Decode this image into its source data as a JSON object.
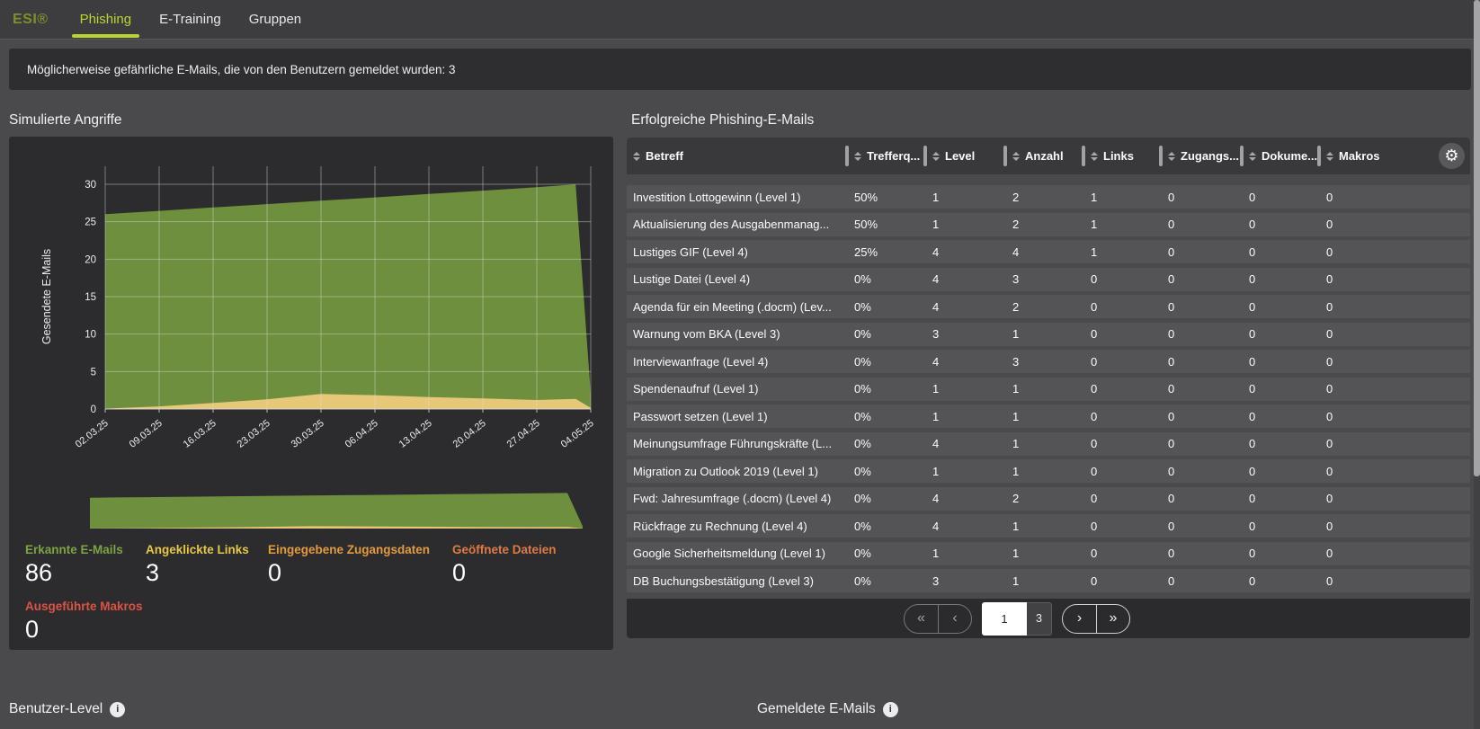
{
  "theme": {
    "accent": "#bdd233",
    "logo_color": "#7f8e2e",
    "panel_bg": "#2c2c2e",
    "row_bg": "#545456"
  },
  "nav": {
    "logo": "ESI®",
    "tabs": [
      {
        "label": "Phishing",
        "active": true
      },
      {
        "label": "E-Training",
        "active": false
      },
      {
        "label": "Gruppen",
        "active": false
      }
    ]
  },
  "notification": {
    "text": "Möglicherweise gefährliche E-Mails, die von den Benutzern gemeldet wurden: 3"
  },
  "simulated_attacks": {
    "title": "Simulierte Angriffe",
    "stats": [
      {
        "label": "Erkannte E-Mails",
        "value": "86",
        "color": "#7ca344"
      },
      {
        "label": "Angeklickte Links",
        "value": "3",
        "color": "#e5c93f"
      },
      {
        "label": "Eingegebene Zugangsdaten",
        "value": "0",
        "color": "#e59b3a"
      },
      {
        "label": "Geöffnete Dateien",
        "value": "0",
        "color": "#df7b42"
      },
      {
        "label": "Ausgeführte Makros",
        "value": "0",
        "color": "#dd5246"
      }
    ]
  },
  "chart_data": {
    "type": "area",
    "title": "Simulierte Angriffe",
    "xlabel": "",
    "ylabel": "Gesendete E-Mails",
    "x_tick_labels": [
      "02.03.25",
      "09.03.25",
      "16.03.25",
      "23.03.25",
      "30.03.25",
      "06.04.25",
      "13.04.25",
      "20.04.25",
      "27.04.25",
      "04.05.25"
    ],
    "yticks": [
      0,
      5,
      10,
      15,
      20,
      25,
      30
    ],
    "ylim": [
      0,
      32.5
    ],
    "grid": true,
    "legend_position": "none",
    "has_brush_overview": true,
    "series": [
      {
        "name": "Gesendete E-Mails",
        "color": "#6e8f3d",
        "points": [
          [
            0,
            26
          ],
          [
            1,
            26.45
          ],
          [
            2,
            26.9
          ],
          [
            3,
            27.35
          ],
          [
            4,
            27.8
          ],
          [
            5,
            28.25
          ],
          [
            6,
            28.7
          ],
          [
            7,
            29.15
          ],
          [
            8,
            29.6
          ],
          [
            8.72,
            30
          ],
          [
            9,
            2
          ]
        ]
      },
      {
        "name": "Angeklickte Links",
        "color": "#e6c878",
        "points": [
          [
            0,
            0.05
          ],
          [
            1,
            0.35
          ],
          [
            2,
            0.8
          ],
          [
            3,
            1.3
          ],
          [
            4,
            2
          ],
          [
            5,
            1.85
          ],
          [
            6,
            1.6
          ],
          [
            7,
            1.4
          ],
          [
            8,
            1.2
          ],
          [
            8.72,
            1.35
          ],
          [
            9,
            0.15
          ]
        ]
      }
    ]
  },
  "table": {
    "title": "Erfolgreiche Phishing-E-Mails",
    "columns": [
      "Betreff",
      "Trefferq...",
      "Level",
      "Anzahl",
      "Links",
      "Zugangs...",
      "Dokume...",
      "Makros"
    ],
    "rows": [
      [
        "Investition Lottogewinn (Level 1)",
        "50%",
        "1",
        "2",
        "1",
        "0",
        "0",
        "0"
      ],
      [
        "Aktualisierung des Ausgabenmanag...",
        "50%",
        "1",
        "2",
        "1",
        "0",
        "0",
        "0"
      ],
      [
        "Lustiges GIF (Level 4)",
        "25%",
        "4",
        "4",
        "1",
        "0",
        "0",
        "0"
      ],
      [
        "Lustige Datei (Level 4)",
        "0%",
        "4",
        "3",
        "0",
        "0",
        "0",
        "0"
      ],
      [
        "Agenda für ein Meeting (.docm) (Lev...",
        "0%",
        "4",
        "2",
        "0",
        "0",
        "0",
        "0"
      ],
      [
        "Warnung vom BKA (Level 3)",
        "0%",
        "3",
        "1",
        "0",
        "0",
        "0",
        "0"
      ],
      [
        "Interviewanfrage (Level 4)",
        "0%",
        "4",
        "3",
        "0",
        "0",
        "0",
        "0"
      ],
      [
        "Spendenaufruf (Level 1)",
        "0%",
        "1",
        "1",
        "0",
        "0",
        "0",
        "0"
      ],
      [
        "Passwort setzen (Level 1)",
        "0%",
        "1",
        "1",
        "0",
        "0",
        "0",
        "0"
      ],
      [
        "Meinungsumfrage Führungskräfte (L...",
        "0%",
        "4",
        "1",
        "0",
        "0",
        "0",
        "0"
      ],
      [
        "Migration zu Outlook 2019 (Level 1)",
        "0%",
        "1",
        "1",
        "0",
        "0",
        "0",
        "0"
      ],
      [
        "Fwd: Jahresumfrage (.docm) (Level 4)",
        "0%",
        "4",
        "2",
        "0",
        "0",
        "0",
        "0"
      ],
      [
        "Rückfrage zu Rechnung (Level 4)",
        "0%",
        "4",
        "1",
        "0",
        "0",
        "0",
        "0"
      ],
      [
        "Google Sicherheitsmeldung (Level 1)",
        "0%",
        "1",
        "1",
        "0",
        "0",
        "0",
        "0"
      ],
      [
        "DB Buchungsbestätigung (Level 3)",
        "0%",
        "3",
        "1",
        "0",
        "0",
        "0",
        "0"
      ]
    ],
    "pagination": {
      "first": "«",
      "prev": "‹",
      "current_page": "1",
      "other_page": "3",
      "next": "›",
      "last": "»"
    }
  },
  "sections_below": {
    "left_title": "Benutzer-Level",
    "right_title": "Gemeldete E-Mails",
    "info_glyph": "i"
  }
}
